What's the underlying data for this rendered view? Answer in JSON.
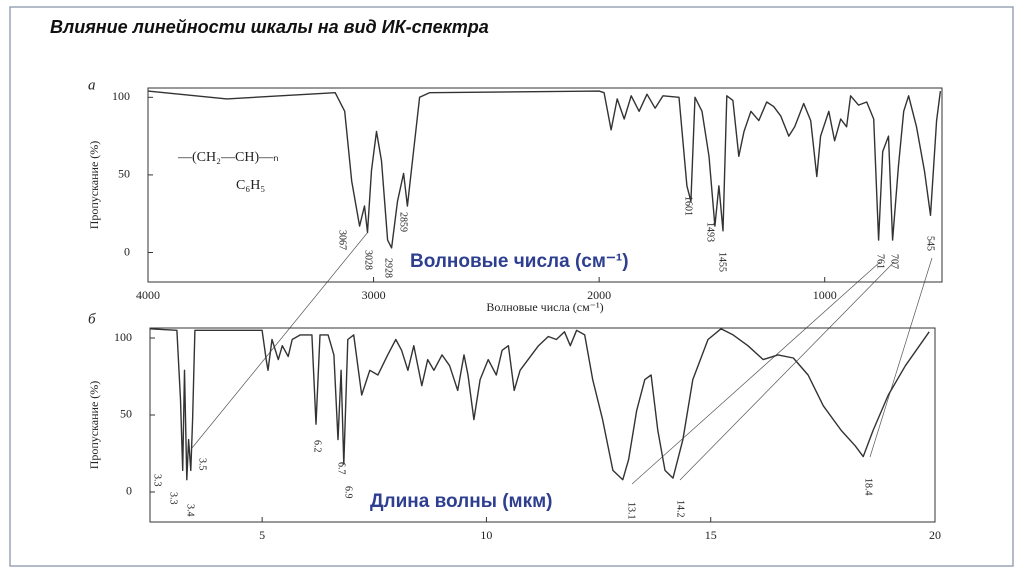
{
  "title": "Влияние линейности шкалы на вид ИК-спектра",
  "chart_data": [
    {
      "type": "line",
      "panel": "а",
      "x_label": "Волновые числа (см⁻¹)",
      "y_label": "Пропускание (%)",
      "annotation": "Волновые числа (см⁻¹)",
      "formula": [
        "—(CH₂—CH)—ₙ",
        "C₆H₅"
      ],
      "peak_labels": [
        "3067",
        "3028",
        "2928",
        "2859",
        "1601",
        "1493",
        "1455",
        "761",
        "707",
        "545"
      ],
      "xlim": [
        4000,
        480
      ],
      "xticks": [
        4000,
        3000,
        2000,
        1000
      ],
      "ylim": [
        -19,
        106
      ],
      "yticks": [
        0,
        50,
        100
      ],
      "series": [
        {
          "color": "#333333",
          "x": [
            4000,
            3650,
            3170,
            3128,
            3097,
            3062,
            3040,
            3027,
            3009,
            2987,
            2965,
            2938,
            2920,
            2894,
            2867,
            2850,
            2823,
            2796,
            2752,
            2000,
            1978,
            1947,
            1920,
            1889,
            1858,
            1823,
            1788,
            1752,
            1717,
            1646,
            1611,
            1593,
            1575,
            1544,
            1513,
            1487,
            1469,
            1451,
            1434,
            1407,
            1381,
            1358,
            1327,
            1292,
            1257,
            1226,
            1195,
            1159,
            1133,
            1093,
            1062,
            1035,
            1018,
            982,
            956,
            929,
            903,
            885,
            850,
            814,
            783,
            761,
            743,
            717,
            699,
            673,
            650,
            628,
            593,
            557,
            531,
            504,
            487
          ],
          "values": [
            104,
            99,
            103,
            91,
            46,
            17,
            30,
            13,
            53,
            78,
            59,
            8,
            3,
            33,
            51,
            30,
            65,
            100,
            103,
            104,
            103,
            79,
            99,
            86,
            101,
            91,
            102,
            93,
            101,
            100,
            43,
            33,
            100,
            91,
            62,
            17,
            43,
            14,
            101,
            98,
            62,
            78,
            91,
            85,
            97,
            94,
            88,
            75,
            81,
            96,
            85,
            49,
            75,
            91,
            72,
            86,
            81,
            101,
            95,
            97,
            86,
            8,
            65,
            75,
            8,
            56,
            91,
            101,
            81,
            52,
            24,
            85,
            104
          ]
        }
      ]
    },
    {
      "type": "line",
      "panel": "б",
      "y_label": "Пропускание (%)",
      "annotation": "Длина волны (мкм)",
      "peak_labels": [
        "3.3",
        "3.3",
        "3.4",
        "3.5",
        "6.2",
        "6.7",
        "6.9",
        "13.1",
        "14.2",
        "18.4"
      ],
      "xlim": [
        2.5,
        20
      ],
      "xticks": [
        5,
        10,
        15,
        20
      ],
      "ylim": [
        -19.5,
        106.5
      ],
      "yticks": [
        0,
        50,
        100
      ],
      "series": [
        {
          "color": "#333333",
          "x": [
            2.5,
            3.1,
            3.18,
            3.23,
            3.27,
            3.32,
            3.36,
            3.41,
            3.45,
            3.5,
            5,
            5.09,
            5.13,
            5.22,
            5.36,
            5.45,
            5.58,
            5.67,
            5.85,
            6.11,
            6.2,
            6.29,
            6.47,
            6.6,
            6.69,
            6.76,
            6.82,
            6.91,
            7.04,
            7.22,
            7.4,
            7.58,
            7.8,
            7.98,
            8.11,
            8.25,
            8.38,
            8.56,
            8.69,
            8.83,
            9.01,
            9.18,
            9.36,
            9.5,
            9.59,
            9.72,
            9.86,
            10.04,
            10.22,
            10.35,
            10.49,
            10.62,
            10.75,
            10.93,
            11.16,
            11.38,
            11.56,
            11.74,
            11.87,
            12.01,
            12.19,
            12.37,
            12.59,
            12.82,
            13.04,
            13.17,
            13.35,
            13.53,
            13.67,
            13.82,
            13.98,
            14.16,
            14.38,
            14.6,
            14.94,
            15.23,
            15.5,
            15.83,
            16.17,
            16.5,
            16.84,
            17.17,
            17.51,
            17.91,
            18.22,
            18.4,
            18.62,
            18.96,
            19.34,
            19.87
          ],
          "values": [
            106,
            105,
            60,
            14,
            79,
            8,
            34,
            14,
            47,
            105,
            105,
            86,
            79,
            99,
            86,
            95,
            88,
            99,
            102,
            102,
            44,
            102,
            102,
            89,
            34,
            79,
            18,
            99,
            102,
            63,
            79,
            76,
            89,
            99,
            92,
            79,
            95,
            69,
            86,
            79,
            89,
            82,
            66,
            89,
            76,
            47,
            73,
            86,
            76,
            92,
            95,
            66,
            79,
            86,
            95,
            101,
            99,
            104,
            95,
            105,
            102,
            73,
            47,
            14,
            8,
            21,
            53,
            73,
            76,
            40,
            14,
            9,
            34,
            73,
            99,
            106,
            102,
            95,
            86,
            89,
            87,
            76,
            56,
            40,
            30,
            23,
            40,
            63,
            82,
            104
          ]
        }
      ]
    }
  ]
}
